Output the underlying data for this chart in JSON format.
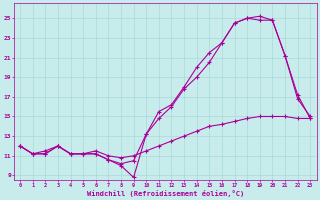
{
  "xlabel": "Windchill (Refroidissement éolien,°C)",
  "background_color": "#c8ecec",
  "grid_color": "#a8d8d8",
  "line_color": "#aa0099",
  "xlim": [
    -0.5,
    23.5
  ],
  "ylim": [
    8.5,
    26.5
  ],
  "xticks": [
    0,
    1,
    2,
    3,
    4,
    5,
    6,
    7,
    8,
    9,
    10,
    11,
    12,
    13,
    14,
    15,
    16,
    17,
    18,
    19,
    20,
    21,
    22,
    23
  ],
  "yticks": [
    9,
    11,
    13,
    15,
    17,
    19,
    21,
    23,
    25
  ],
  "curve1_x": [
    0,
    1,
    2,
    3,
    4,
    5,
    6,
    7,
    8,
    9,
    10,
    11,
    12,
    13,
    14,
    15,
    16,
    17,
    18,
    19,
    20,
    21,
    22,
    23
  ],
  "curve1_y": [
    12.0,
    11.2,
    11.2,
    12.0,
    11.2,
    11.2,
    11.2,
    10.6,
    10.0,
    8.8,
    13.2,
    15.5,
    16.2,
    18.0,
    20.0,
    21.5,
    22.5,
    24.5,
    25.0,
    25.2,
    24.8,
    21.2,
    16.8,
    15.0
  ],
  "curve2_x": [
    0,
    1,
    2,
    3,
    4,
    5,
    6,
    7,
    8,
    9,
    10,
    11,
    12,
    13,
    14,
    15,
    16,
    17,
    18,
    19,
    20,
    21,
    22,
    23
  ],
  "curve2_y": [
    12.0,
    11.2,
    11.2,
    12.0,
    11.2,
    11.2,
    11.2,
    10.6,
    10.2,
    10.5,
    13.2,
    14.8,
    16.0,
    17.8,
    19.0,
    20.5,
    22.5,
    24.5,
    25.0,
    24.8,
    24.8,
    21.2,
    17.2,
    14.8
  ],
  "curve3_x": [
    0,
    1,
    2,
    3,
    4,
    5,
    6,
    7,
    8,
    9,
    10,
    11,
    12,
    13,
    14,
    15,
    16,
    17,
    18,
    19,
    20,
    21,
    22,
    23
  ],
  "curve3_y": [
    12.0,
    11.2,
    11.5,
    12.0,
    11.2,
    11.2,
    11.5,
    11.0,
    10.8,
    11.0,
    11.5,
    12.0,
    12.5,
    13.0,
    13.5,
    14.0,
    14.2,
    14.5,
    14.8,
    15.0,
    15.0,
    15.0,
    14.8,
    14.8
  ]
}
